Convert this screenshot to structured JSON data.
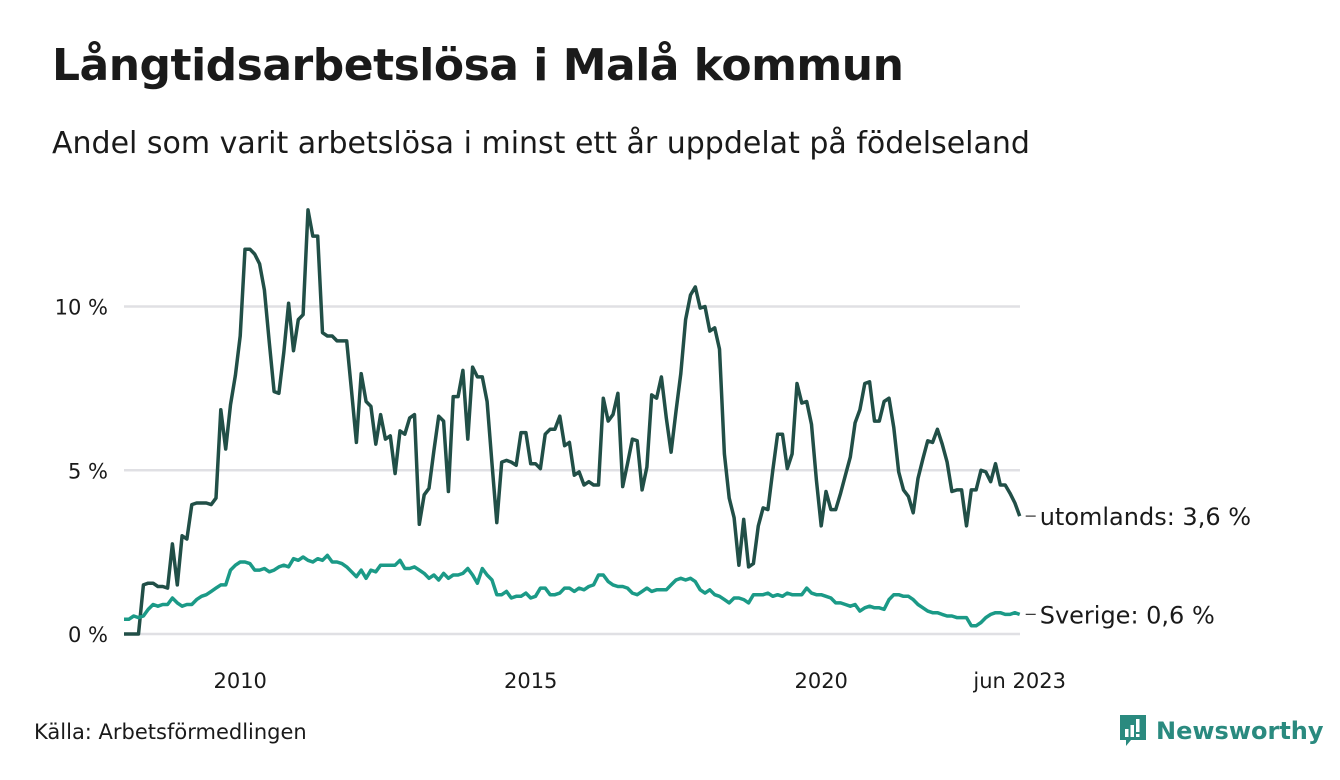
{
  "header": {
    "title": "Långtidsarbetslösa i Malå kommun",
    "subtitle": "Andel som varit arbetslösa i minst ett år uppdelat på födelseland"
  },
  "footer": {
    "source": "Källa: Arbetsförmedlingen",
    "brand": "Newsworthy"
  },
  "colors": {
    "utomlands": "#214f47",
    "sverige": "#1b9a87",
    "grid": "#e0e0e4",
    "brand": "#2a8a7f"
  },
  "chart_data": {
    "type": "line",
    "title": "Långtidsarbetslösa i Malå kommun",
    "subtitle": "Andel som varit arbetslösa i minst ett år uppdelat på födelseland",
    "xlabel": "",
    "ylabel": "",
    "x_start": "2008-01",
    "x_end": "2023-06",
    "frequency": "monthly",
    "x_ticks": [
      {
        "label": "2010",
        "year": 2010.0
      },
      {
        "label": "2015",
        "year": 2015.0
      },
      {
        "label": "2020",
        "year": 2020.0
      },
      {
        "label": "jun 2023",
        "year": 2023.4167
      }
    ],
    "y_ticks": [
      {
        "label": "0 %",
        "value": 0
      },
      {
        "label": "5 %",
        "value": 5
      },
      {
        "label": "10 %",
        "value": 10
      }
    ],
    "ylim": [
      0,
      13
    ],
    "grid": true,
    "legend": "end-labels-right",
    "series": [
      {
        "name": "utomlands",
        "end_label": "utomlands: 3,6 %",
        "values": [
          0,
          0,
          0,
          0,
          1.5,
          1.55,
          1.55,
          1.45,
          1.45,
          1.4,
          2.75,
          1.5,
          3.0,
          2.9,
          3.95,
          4.0,
          4.0,
          4.0,
          3.95,
          4.15,
          6.85,
          5.65,
          7.0,
          7.9,
          9.1,
          11.75,
          11.75,
          11.6,
          11.3,
          10.5,
          8.9,
          7.4,
          7.35,
          8.6,
          10.1,
          8.65,
          9.6,
          9.75,
          12.95,
          12.15,
          12.15,
          9.2,
          9.1,
          9.1,
          8.95,
          8.95,
          8.95,
          7.4,
          5.85,
          7.95,
          7.1,
          6.95,
          5.8,
          6.7,
          5.95,
          6.05,
          4.9,
          6.2,
          6.1,
          6.6,
          6.7,
          3.35,
          4.25,
          4.45,
          5.6,
          6.65,
          6.5,
          4.35,
          7.25,
          7.25,
          8.05,
          5.95,
          8.15,
          7.85,
          7.85,
          7.1,
          5.2,
          3.4,
          5.25,
          5.3,
          5.25,
          5.15,
          6.15,
          6.15,
          5.2,
          5.2,
          5.05,
          6.1,
          6.25,
          6.25,
          6.65,
          5.75,
          5.85,
          4.85,
          4.95,
          4.55,
          4.65,
          4.55,
          4.55,
          7.2,
          6.5,
          6.7,
          7.35,
          4.5,
          5.2,
          5.95,
          5.9,
          4.4,
          5.1,
          7.3,
          7.2,
          7.85,
          6.6,
          5.55,
          6.8,
          7.95,
          9.6,
          10.35,
          10.6,
          9.95,
          10.0,
          9.25,
          9.35,
          8.7,
          5.5,
          4.15,
          3.55,
          2.1,
          3.5,
          2.05,
          2.15,
          3.3,
          3.85,
          3.8,
          5.0,
          6.1,
          6.1,
          5.05,
          5.5,
          7.65,
          7.05,
          7.1,
          6.4,
          4.7,
          3.3,
          4.35,
          3.8,
          3.8,
          4.3,
          4.85,
          5.4,
          6.45,
          6.85,
          7.65,
          7.7,
          6.5,
          6.5,
          7.1,
          7.2,
          6.3,
          4.95,
          4.4,
          4.2,
          3.7,
          4.75,
          5.35,
          5.9,
          5.85,
          6.25,
          5.8,
          5.25,
          4.35,
          4.4,
          4.4,
          3.3,
          4.4,
          4.4,
          5.0,
          4.95,
          4.65,
          5.2,
          4.55,
          4.55,
          4.3,
          4.0,
          3.6
        ]
      },
      {
        "name": "Sverige",
        "end_label": "Sverige: 0,6 %",
        "values": [
          0.45,
          0.45,
          0.55,
          0.5,
          0.55,
          0.75,
          0.9,
          0.85,
          0.9,
          0.9,
          1.1,
          0.95,
          0.85,
          0.9,
          0.9,
          1.05,
          1.15,
          1.2,
          1.3,
          1.4,
          1.5,
          1.5,
          1.95,
          2.1,
          2.2,
          2.2,
          2.15,
          1.95,
          1.95,
          2.0,
          1.9,
          1.95,
          2.05,
          2.1,
          2.05,
          2.3,
          2.25,
          2.35,
          2.25,
          2.2,
          2.3,
          2.25,
          2.4,
          2.2,
          2.2,
          2.15,
          2.05,
          1.9,
          1.75,
          1.95,
          1.7,
          1.95,
          1.9,
          2.1,
          2.1,
          2.1,
          2.1,
          2.25,
          2.0,
          2.0,
          2.05,
          1.95,
          1.85,
          1.7,
          1.8,
          1.65,
          1.85,
          1.7,
          1.8,
          1.8,
          1.85,
          2.0,
          1.8,
          1.55,
          2.0,
          1.8,
          1.65,
          1.2,
          1.2,
          1.3,
          1.1,
          1.15,
          1.15,
          1.25,
          1.1,
          1.15,
          1.4,
          1.4,
          1.2,
          1.2,
          1.25,
          1.4,
          1.4,
          1.3,
          1.4,
          1.35,
          1.45,
          1.5,
          1.8,
          1.8,
          1.6,
          1.5,
          1.45,
          1.45,
          1.4,
          1.25,
          1.2,
          1.3,
          1.4,
          1.3,
          1.35,
          1.35,
          1.35,
          1.5,
          1.65,
          1.7,
          1.65,
          1.7,
          1.6,
          1.35,
          1.25,
          1.35,
          1.2,
          1.15,
          1.05,
          0.95,
          1.1,
          1.1,
          1.05,
          0.95,
          1.2,
          1.2,
          1.2,
          1.25,
          1.15,
          1.2,
          1.15,
          1.25,
          1.2,
          1.2,
          1.2,
          1.4,
          1.25,
          1.2,
          1.2,
          1.15,
          1.1,
          0.95,
          0.95,
          0.9,
          0.85,
          0.9,
          0.7,
          0.8,
          0.85,
          0.8,
          0.8,
          0.75,
          1.05,
          1.2,
          1.2,
          1.15,
          1.15,
          1.05,
          0.9,
          0.8,
          0.7,
          0.65,
          0.65,
          0.6,
          0.55,
          0.55,
          0.5,
          0.5,
          0.5,
          0.25,
          0.25,
          0.35,
          0.5,
          0.6,
          0.65,
          0.65,
          0.6,
          0.6,
          0.65,
          0.6
        ]
      }
    ]
  }
}
